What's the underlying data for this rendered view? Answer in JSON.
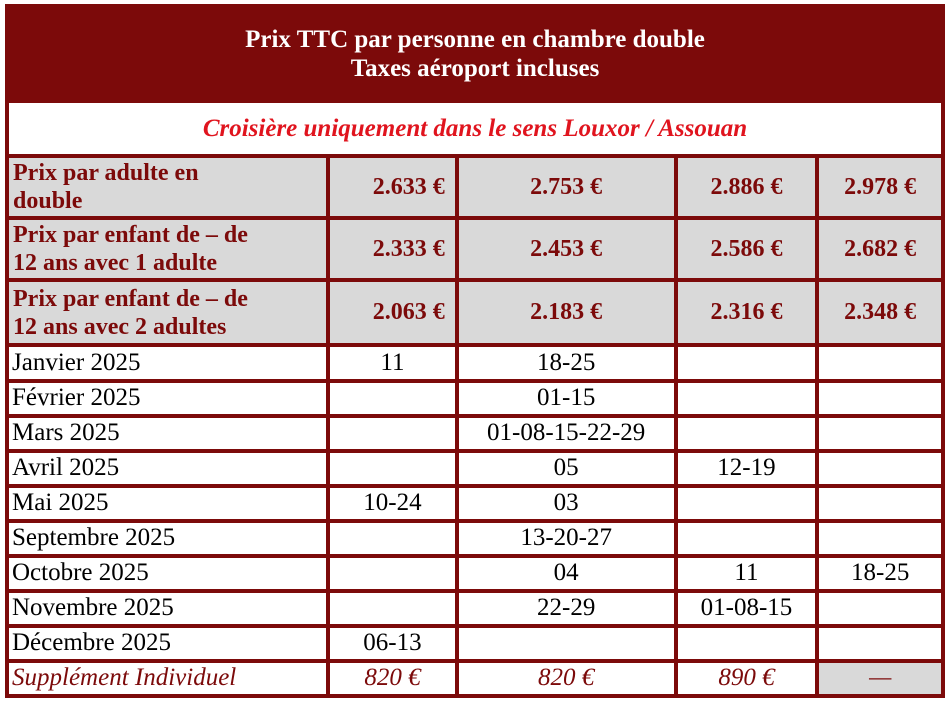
{
  "header": {
    "line1": "Prix TTC par personne en chambre double",
    "line2": "Taxes aéroport incluses"
  },
  "subtitle": "Croisière uniquement dans le sens Louxor / Assouan",
  "prices": [
    {
      "label_l1": "Prix par adulte en",
      "label_l2": "double",
      "values": [
        "2.633 €",
        "2.753 €",
        "2.886 €",
        "2.978 €"
      ]
    },
    {
      "label_l1": "Prix par enfant de – de",
      "label_l2": "12 ans avec 1 adulte",
      "values": [
        "2.333 €",
        "2.453 €",
        "2.586 €",
        "2.682 €"
      ]
    },
    {
      "label_l1": "Prix par enfant de – de",
      "label_l2": "12 ans avec 2 adultes",
      "values": [
        "2.063 €",
        "2.183 €",
        "2.316 €",
        "2.348 €"
      ]
    }
  ],
  "months": [
    {
      "label": "Janvier 2025",
      "cells": [
        "11",
        "18-25",
        "",
        ""
      ]
    },
    {
      "label": "Février 2025",
      "cells": [
        "",
        "01-15",
        "",
        ""
      ]
    },
    {
      "label": "Mars 2025",
      "cells": [
        "",
        "01-08-15-22-29",
        "",
        ""
      ]
    },
    {
      "label": "Avril 2025",
      "cells": [
        "",
        "05",
        "12-19",
        ""
      ]
    },
    {
      "label": "Mai 2025",
      "cells": [
        "10-24",
        "03",
        "",
        ""
      ]
    },
    {
      "label": "Septembre 2025",
      "cells": [
        "",
        "13-20-27",
        "",
        ""
      ]
    },
    {
      "label": "Octobre 2025",
      "cells": [
        "",
        "04",
        "11",
        "18-25"
      ]
    },
    {
      "label": "Novembre 2025",
      "cells": [
        "",
        "22-29",
        "01-08-15",
        ""
      ]
    },
    {
      "label": "Décembre 2025",
      "cells": [
        "06-13",
        "",
        "",
        ""
      ]
    }
  ],
  "supplement": {
    "label": "Supplément Individuel",
    "values": [
      "820 €",
      "820 €",
      "890 €",
      "—"
    ]
  },
  "colors": {
    "dark_red": "#7c0a0a",
    "bright_red": "#e0141e",
    "grey": "#d9d9d9"
  }
}
